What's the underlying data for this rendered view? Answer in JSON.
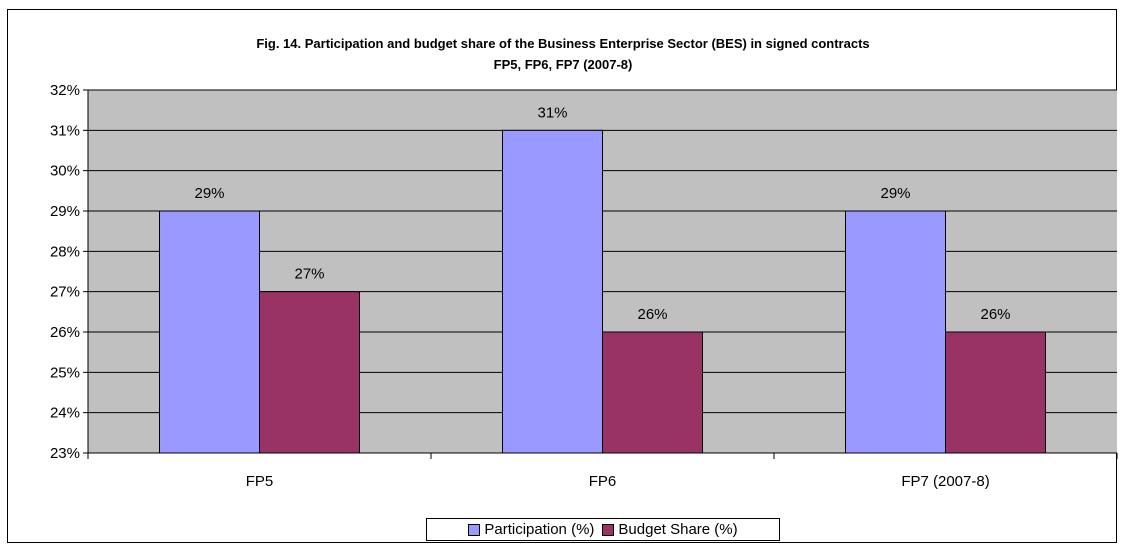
{
  "chart_data": {
    "type": "bar",
    "title": "Fig. 14. Participation and budget share of the Business Enterprise Sector (BES) in signed contracts",
    "subtitle": "FP5, FP6, FP7 (2007-8)",
    "categories": [
      "FP5",
      "FP6",
      "FP7 (2007-8)"
    ],
    "series": [
      {
        "name": "Participation (%)",
        "values": [
          29,
          31,
          29
        ],
        "labels": [
          "29%",
          "31%",
          "29%"
        ],
        "color": "#9999ff"
      },
      {
        "name": "Budget Share (%)",
        "values": [
          27,
          26,
          26
        ],
        "labels": [
          "27%",
          "26%",
          "26%"
        ],
        "color": "#993366"
      }
    ],
    "ylim": [
      23,
      32
    ],
    "yticks": [
      {
        "value": 23,
        "label": "23%"
      },
      {
        "value": 24,
        "label": "24%"
      },
      {
        "value": 25,
        "label": "25%"
      },
      {
        "value": 26,
        "label": "26%"
      },
      {
        "value": 27,
        "label": "27%"
      },
      {
        "value": 28,
        "label": "28%"
      },
      {
        "value": 29,
        "label": "29%"
      },
      {
        "value": 30,
        "label": "30%"
      },
      {
        "value": 31,
        "label": "31%"
      },
      {
        "value": 32,
        "label": "32%"
      }
    ],
    "grid": true,
    "legend": "bottom",
    "plot_background": "#c0c0c0"
  }
}
